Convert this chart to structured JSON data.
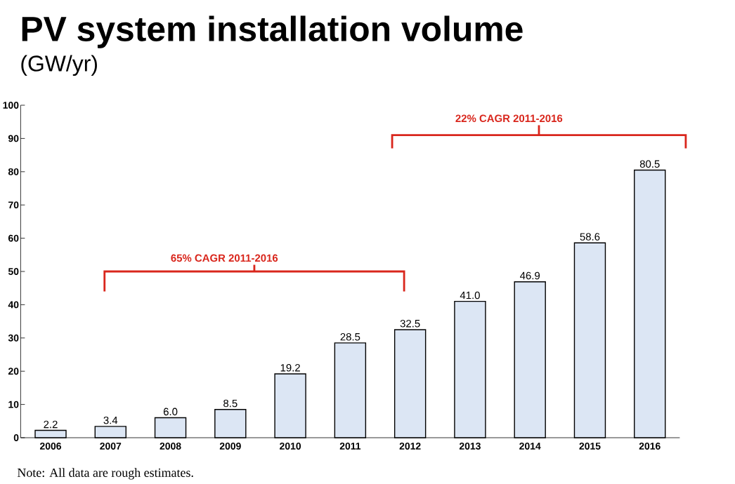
{
  "chart_data": {
    "type": "bar",
    "title": "PV system installation volume",
    "subtitle": "(GW/yr)",
    "categories": [
      "2006",
      "2007",
      "2008",
      "2009",
      "2010",
      "2011",
      "2012",
      "2013",
      "2014",
      "2015",
      "2016"
    ],
    "values": [
      2.2,
      3.4,
      6.0,
      8.5,
      19.2,
      28.5,
      32.5,
      41.0,
      46.9,
      58.6,
      80.5
    ],
    "value_labels": [
      "2.2",
      "3.4",
      "6.0",
      "8.5",
      "19.2",
      "28.5",
      "32.5",
      "41.0",
      "46.9",
      "58.6",
      "80.5"
    ],
    "color": "#dce6f4",
    "ylim": [
      0,
      100
    ],
    "yticks": [
      0,
      10,
      20,
      30,
      40,
      50,
      60,
      70,
      80,
      90,
      100
    ],
    "annotations": [
      "22% CAGR 2011-2016",
      "65% CAGR 2011-2016",
      "Note: All data are rough estimates."
    ]
  }
}
